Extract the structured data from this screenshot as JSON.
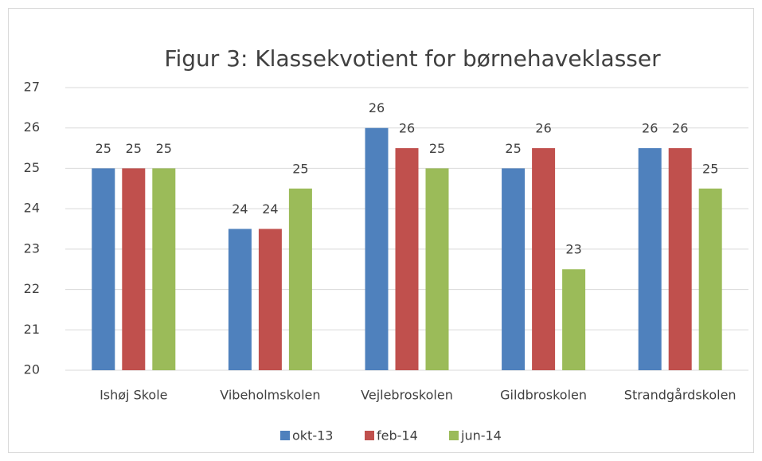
{
  "chart_data": {
    "type": "bar",
    "title": "Figur 3: Klassekvotient for børnehaveklasser",
    "categories": [
      "Ishøj Skole",
      "Vibeholmskolen",
      "Vejlebroskolen",
      "Gildbroskolen",
      "Strandgårdskolen"
    ],
    "series": [
      {
        "name": "okt-13",
        "color": "#4f81bd",
        "values": [
          25,
          23.5,
          26,
          25,
          25.5
        ],
        "value_labels": [
          "25",
          "24",
          "26",
          "25",
          "26"
        ]
      },
      {
        "name": "feb-14",
        "color": "#c0504d",
        "values": [
          25,
          23.5,
          25.5,
          25.5,
          25.5
        ],
        "value_labels": [
          "25",
          "24",
          "26",
          "26",
          "26"
        ]
      },
      {
        "name": "jun-14",
        "color": "#9bbb59",
        "values": [
          25,
          24.5,
          25,
          22.5,
          24.5
        ],
        "value_labels": [
          "25",
          "25",
          "25",
          "23",
          "25"
        ]
      }
    ],
    "ylim": [
      20,
      27
    ],
    "yticks": [
      20,
      21,
      22,
      23,
      24,
      25,
      26,
      27
    ],
    "grid": true,
    "legend": "bottom"
  }
}
